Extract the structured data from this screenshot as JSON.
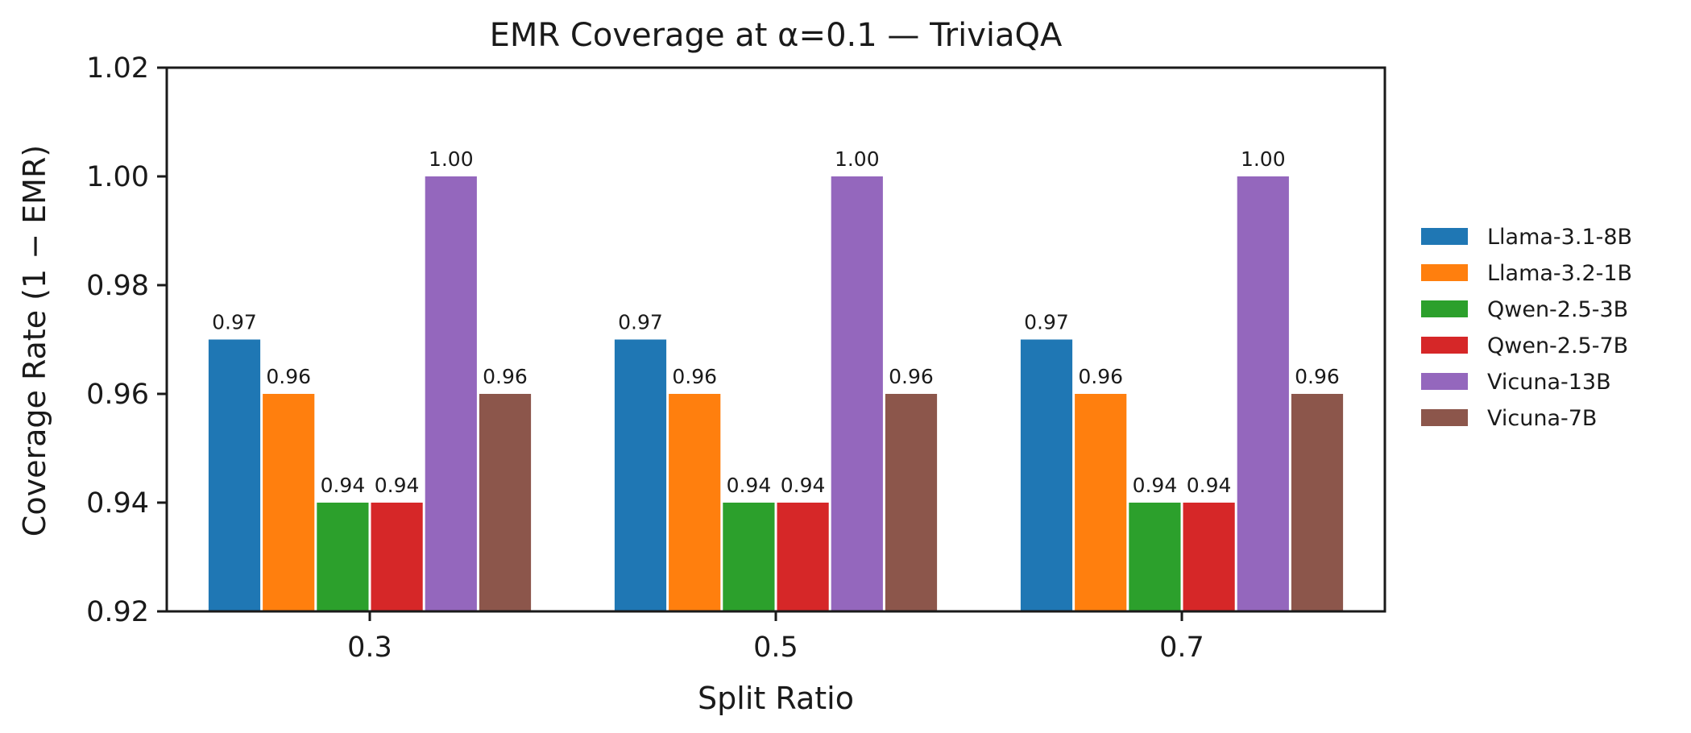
{
  "chart_data": {
    "type": "bar",
    "title": "EMR Coverage at α=0.1 — TriviaQA",
    "xlabel": "Split Ratio",
    "ylabel": "Coverage Rate (1 − EMR)",
    "categories": [
      "0.3",
      "0.5",
      "0.7"
    ],
    "ylim": [
      0.92,
      1.02
    ],
    "yticks": [
      0.92,
      0.94,
      0.96,
      0.98,
      1.0,
      1.02
    ],
    "ytick_labels": [
      "0.92",
      "0.94",
      "0.96",
      "0.98",
      "1.00",
      "1.02"
    ],
    "grid": false,
    "legend_position": "right",
    "series": [
      {
        "name": "Llama-3.1-8B",
        "color": "#1f77b4",
        "values": [
          0.97,
          0.97,
          0.97
        ],
        "labels": [
          "0.97",
          "0.97",
          "0.97"
        ]
      },
      {
        "name": "Llama-3.2-1B",
        "color": "#ff7f0e",
        "values": [
          0.96,
          0.96,
          0.96
        ],
        "labels": [
          "0.96",
          "0.96",
          "0.96"
        ]
      },
      {
        "name": "Qwen-2.5-3B",
        "color": "#2ca02c",
        "values": [
          0.94,
          0.94,
          0.94
        ],
        "labels": [
          "0.94",
          "0.94",
          "0.94"
        ]
      },
      {
        "name": "Qwen-2.5-7B",
        "color": "#d62728",
        "values": [
          0.94,
          0.94,
          0.94
        ],
        "labels": [
          "0.94",
          "0.94",
          "0.94"
        ]
      },
      {
        "name": "Vicuna-13B",
        "color": "#9467bd",
        "values": [
          1.0,
          1.0,
          1.0
        ],
        "labels": [
          "1.00",
          "1.00",
          "1.00"
        ]
      },
      {
        "name": "Vicuna-7B",
        "color": "#8c564b",
        "values": [
          0.96,
          0.96,
          0.96
        ],
        "labels": [
          "0.96",
          "0.96",
          "0.96"
        ]
      }
    ]
  }
}
